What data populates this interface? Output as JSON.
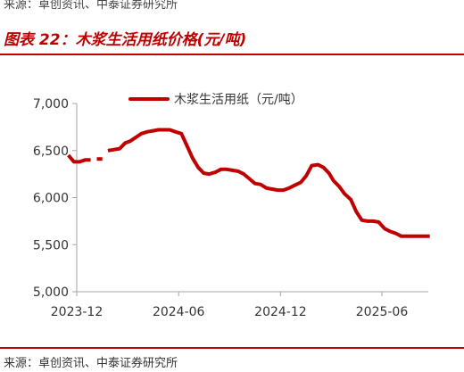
{
  "header": {
    "source_top": "来源：卓创资讯、中泰证券研究所",
    "title": "图表 22：木浆生活用纸价格(元/吨)"
  },
  "footer": {
    "source": "来源：卓创资讯、中泰证券研究所"
  },
  "colors": {
    "accent": "#c00000",
    "axis": "#a6a6a6",
    "text": "#333333"
  },
  "chart_data": {
    "type": "line",
    "ylim": [
      5000,
      7000
    ],
    "y_ticks": [
      5000,
      5500,
      6000,
      6500,
      7000
    ],
    "y_tick_labels": [
      "5,000",
      "5,500",
      "6,000",
      "6,500",
      "7,000"
    ],
    "x_ticks": [
      "2023-12",
      "2024-06",
      "2024-12",
      "2025-06"
    ],
    "x_tick_dates": [
      "2023-12-01",
      "2024-06-01",
      "2024-12-01",
      "2025-06-01"
    ],
    "grid": false,
    "legend_position": "top",
    "series": [
      {
        "name": "木浆生活用纸（元/吨）",
        "color": "#c00000",
        "segments": [
          {
            "x": [
              "2023-11-16",
              "2023-11-26",
              "2023-12-06",
              "2023-12-16",
              "2023-12-26"
            ],
            "y": [
              6450,
              6380,
              6380,
              6400,
              6400
            ]
          },
          {
            "x": [
              "2024-01-06",
              "2024-01-16"
            ],
            "y": [
              6410,
              6410
            ]
          },
          {
            "x": [
              "2024-01-26",
              "2024-02-06",
              "2024-02-16",
              "2024-02-26",
              "2024-03-06",
              "2024-03-16",
              "2024-03-26",
              "2024-04-06",
              "2024-04-16",
              "2024-04-26",
              "2024-05-06",
              "2024-05-16",
              "2024-05-26",
              "2024-06-06",
              "2024-06-16",
              "2024-06-26",
              "2024-07-06",
              "2024-07-16",
              "2024-07-26",
              "2024-08-06",
              "2024-08-16",
              "2024-08-26",
              "2024-09-06",
              "2024-09-16",
              "2024-09-26",
              "2024-10-06",
              "2024-10-16",
              "2024-10-26",
              "2024-11-06",
              "2024-11-16",
              "2024-11-26",
              "2024-12-06",
              "2024-12-16",
              "2024-12-26",
              "2025-01-06",
              "2025-01-16",
              "2025-01-26",
              "2025-02-06",
              "2025-02-16",
              "2025-02-26",
              "2025-03-06",
              "2025-03-16",
              "2025-03-26",
              "2025-04-06",
              "2025-04-16",
              "2025-04-26",
              "2025-05-06",
              "2025-05-16",
              "2025-05-26",
              "2025-06-06",
              "2025-06-16",
              "2025-06-26",
              "2025-07-06",
              "2025-07-16",
              "2025-07-26",
              "2025-08-06",
              "2025-08-16",
              "2025-08-26"
            ],
            "y": [
              6500,
              6510,
              6520,
              6580,
              6600,
              6640,
              6680,
              6700,
              6710,
              6720,
              6720,
              6720,
              6700,
              6680,
              6550,
              6420,
              6320,
              6260,
              6250,
              6270,
              6300,
              6300,
              6290,
              6280,
              6250,
              6200,
              6150,
              6140,
              6100,
              6090,
              6080,
              6080,
              6100,
              6130,
              6160,
              6230,
              6340,
              6350,
              6320,
              6260,
              6180,
              6120,
              6040,
              5980,
              5850,
              5760,
              5750,
              5750,
              5740,
              5670,
              5640,
              5620,
              5590,
              5590,
              5590,
              5590,
              5590,
              5590
            ]
          }
        ]
      }
    ]
  }
}
